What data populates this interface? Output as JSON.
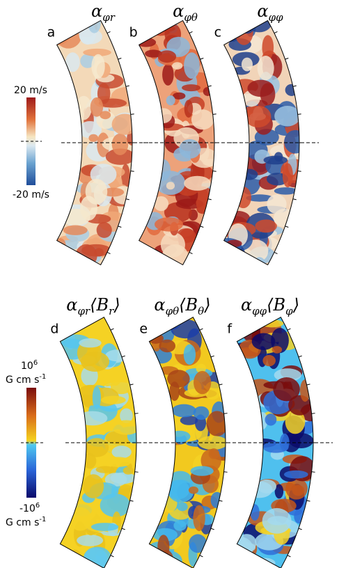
{
  "panels": [
    {
      "letter": "a",
      "title": {
        "symbol": "α",
        "subscript": "φr"
      }
    },
    {
      "letter": "b",
      "title": {
        "symbol": "α",
        "subscript": "φθ"
      }
    },
    {
      "letter": "c",
      "title": {
        "symbol": "α",
        "subscript": "φφ"
      }
    },
    {
      "letter": "d",
      "title": {
        "symbol": "α",
        "subscript": "φr",
        "field": "⟨B",
        "field_subscript": "r",
        "close": "⟩"
      }
    },
    {
      "letter": "e",
      "title": {
        "symbol": "α",
        "subscript": "φθ",
        "field": "⟨B",
        "field_subscript": "θ",
        "close": "⟩"
      }
    },
    {
      "letter": "f",
      "title": {
        "symbol": "α",
        "subscript": "φφ",
        "field": "⟨B",
        "field_subscript": "φ",
        "close": "⟩"
      }
    }
  ],
  "colorbars": [
    {
      "max_label": "20 m/s",
      "min_label": "-20 m/s"
    },
    {
      "max_base": "10",
      "max_exp": "6",
      "min_base": "-10",
      "min_exp": "6",
      "unit": "G cm s",
      "unit_exp": "-1"
    }
  ]
}
